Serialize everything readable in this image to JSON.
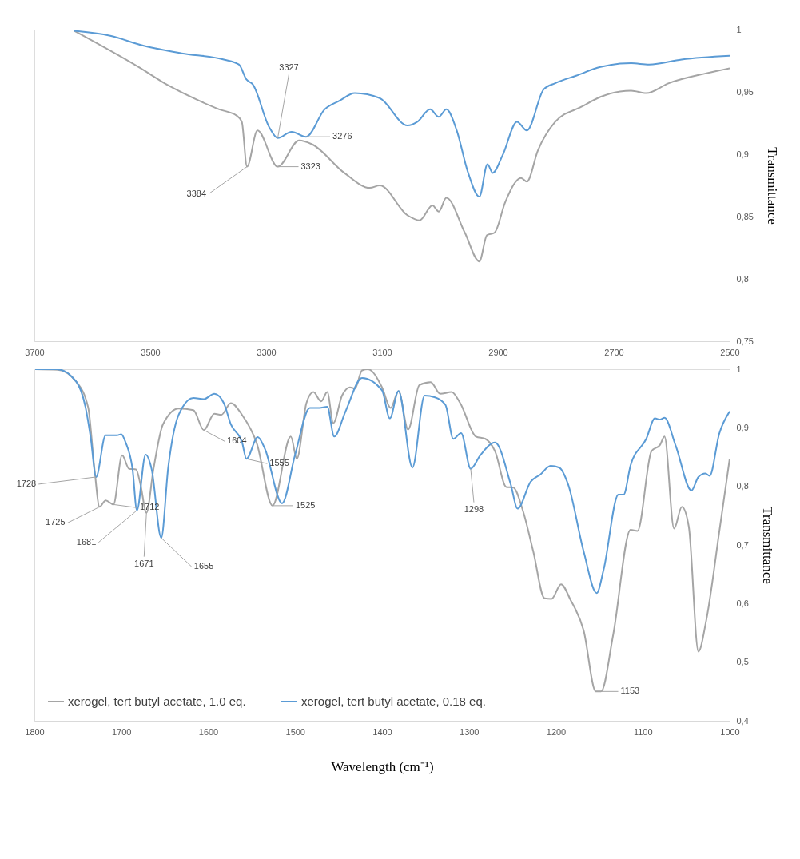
{
  "chart_data": [
    {
      "type": "line",
      "ylabel": "Transmittance",
      "xlim": [
        3700,
        2500
      ],
      "xticks": [
        3700,
        3500,
        3300,
        3100,
        2900,
        2700,
        2500
      ],
      "ylim": [
        0.75,
        1
      ],
      "yticks": [
        {
          "value": 0.75,
          "label": "0,75"
        },
        {
          "value": 0.8,
          "label": "0,8"
        },
        {
          "value": 0.85,
          "label": "0,85"
        },
        {
          "value": 0.9,
          "label": "0,9"
        },
        {
          "value": 0.95,
          "label": "0,95"
        },
        1
      ],
      "series": [
        {
          "color": "#a5a5a5",
          "x": [
            3631,
            3520,
            3468,
            3416,
            3381,
            3351,
            3342,
            3333,
            3315,
            3280,
            3243,
            3221,
            3165,
            3121,
            3104,
            3056,
            3035,
            3013,
            3002,
            2989,
            2957,
            2932,
            2919,
            2906,
            2887,
            2860,
            2850,
            2831,
            2801,
            2756,
            2723,
            2670,
            2644,
            2605,
            2540,
            2500
          ],
          "values": [
            0.999,
            0.97,
            0.955,
            0.943,
            0.936,
            0.931,
            0.926,
            0.89,
            0.919,
            0.89,
            0.911,
            0.908,
            0.885,
            0.873,
            0.875,
            0.851,
            0.847,
            0.859,
            0.854,
            0.865,
            0.837,
            0.814,
            0.835,
            0.837,
            0.862,
            0.881,
            0.878,
            0.903,
            0.926,
            0.938,
            0.946,
            0.951,
            0.949,
            0.957,
            0.965,
            0.969
          ]
        },
        {
          "color": "#5b9bd5",
          "x": [
            3631,
            3569,
            3511,
            3446,
            3373,
            3347,
            3334,
            3323,
            3295,
            3280,
            3256,
            3231,
            3199,
            3173,
            3147,
            3104,
            3056,
            3039,
            3017,
            3002,
            2989,
            2971,
            2952,
            2932,
            2918,
            2909,
            2892,
            2867,
            2850,
            2821,
            2801,
            2765,
            2723,
            2670,
            2639,
            2583,
            2500
          ],
          "values": [
            0.999,
            0.995,
            0.987,
            0.981,
            0.976,
            0.972,
            0.96,
            0.956,
            0.922,
            0.913,
            0.918,
            0.914,
            0.936,
            0.943,
            0.949,
            0.945,
            0.923,
            0.926,
            0.936,
            0.93,
            0.936,
            0.919,
            0.886,
            0.866,
            0.892,
            0.885,
            0.899,
            0.926,
            0.919,
            0.952,
            0.957,
            0.963,
            0.97,
            0.973,
            0.972,
            0.976,
            0.979
          ]
        }
      ],
      "annotations": [
        {
          "text": "3327",
          "x": 3280,
          "y": 0.913
        },
        {
          "text": "3276",
          "x": 3231,
          "y": 0.914
        },
        {
          "text": "3384",
          "x": 3333,
          "y": 0.89
        },
        {
          "text": "3323",
          "x": 3280,
          "y": 0.89
        }
      ]
    },
    {
      "type": "line",
      "xlabel": "Wavelength (cm⁻¹)",
      "ylabel": "Transmittance",
      "legend": "bottom left",
      "xlim": [
        1800,
        1000
      ],
      "xticks": [
        1800,
        1700,
        1600,
        1500,
        1400,
        1300,
        1200,
        1100,
        1000
      ],
      "ylim": [
        0.4,
        1
      ],
      "yticks": [
        {
          "value": 0.4,
          "label": "0,4"
        },
        {
          "value": 0.5,
          "label": "0,5"
        },
        {
          "value": 0.6,
          "label": "0,6"
        },
        {
          "value": 0.7,
          "label": "0,7"
        },
        {
          "value": 0.8,
          "label": "0,8"
        },
        {
          "value": 0.9,
          "label": "0,9"
        },
        1
      ],
      "series": [
        {
          "name": "xerogel, tert butyl acetate, 1.0 eq.",
          "color": "#a5a5a5",
          "x": [
            1799,
            1773,
            1752,
            1738,
            1731,
            1725,
            1718,
            1709,
            1699,
            1691,
            1683,
            1678,
            1671,
            1663,
            1652,
            1634,
            1617,
            1605,
            1593,
            1585,
            1574,
            1561,
            1544,
            1526,
            1505,
            1498,
            1487,
            1479,
            1470,
            1463,
            1456,
            1446,
            1437,
            1431,
            1423,
            1416,
            1400,
            1390,
            1381,
            1370,
            1357,
            1344,
            1333,
            1320,
            1310,
            1292,
            1281,
            1270,
            1257,
            1249,
            1238,
            1226,
            1213,
            1205,
            1194,
            1183,
            1168,
            1154,
            1148,
            1134,
            1114,
            1106,
            1090,
            1080,
            1075,
            1064,
            1055,
            1047,
            1036,
            1027,
            1012,
            1000
          ],
          "values": [
            1.0,
            0.999,
            0.979,
            0.934,
            0.832,
            0.765,
            0.776,
            0.769,
            0.853,
            0.83,
            0.829,
            0.804,
            0.755,
            0.829,
            0.906,
            0.933,
            0.93,
            0.896,
            0.924,
            0.922,
            0.942,
            0.922,
            0.873,
            0.767,
            0.885,
            0.847,
            0.942,
            0.961,
            0.945,
            0.961,
            0.908,
            0.955,
            0.969,
            0.967,
            0.998,
            1.0,
            0.969,
            0.934,
            0.963,
            0.897,
            0.973,
            0.978,
            0.958,
            0.961,
            0.942,
            0.885,
            0.881,
            0.86,
            0.799,
            0.798,
            0.759,
            0.689,
            0.609,
            0.608,
            0.633,
            0.606,
            0.554,
            0.45,
            0.45,
            0.547,
            0.726,
            0.724,
            0.86,
            0.871,
            0.885,
            0.728,
            0.765,
            0.731,
            0.518,
            0.571,
            0.722,
            0.847
          ]
        },
        {
          "name": "xerogel, tert butyl acetate, 0.18 eq.",
          "color": "#5b9bd5",
          "x": [
            1799,
            1774,
            1752,
            1741,
            1735,
            1729,
            1718,
            1705,
            1700,
            1695,
            1687,
            1682,
            1672,
            1665,
            1654,
            1646,
            1634,
            1617,
            1605,
            1593,
            1582,
            1574,
            1561,
            1556,
            1543,
            1535,
            1515,
            1500,
            1483,
            1472,
            1463,
            1455,
            1442,
            1423,
            1400,
            1391,
            1381,
            1365,
            1351,
            1339,
            1327,
            1318,
            1309,
            1298,
            1287,
            1270,
            1252,
            1244,
            1229,
            1218,
            1206,
            1196,
            1186,
            1168,
            1153,
            1145,
            1128,
            1122,
            1114,
            1096,
            1086,
            1080,
            1075,
            1062,
            1044,
            1036,
            1028,
            1023,
            1012,
            1000
          ],
          "values": [
            1.0,
            1.0,
            0.979,
            0.934,
            0.881,
            0.816,
            0.887,
            0.887,
            0.889,
            0.875,
            0.829,
            0.759,
            0.854,
            0.829,
            0.712,
            0.832,
            0.922,
            0.951,
            0.949,
            0.958,
            0.942,
            0.906,
            0.875,
            0.847,
            0.884,
            0.865,
            0.771,
            0.854,
            0.934,
            0.934,
            0.936,
            0.885,
            0.928,
            0.985,
            0.964,
            0.916,
            0.963,
            0.832,
            0.955,
            0.952,
            0.939,
            0.881,
            0.891,
            0.83,
            0.853,
            0.875,
            0.804,
            0.762,
            0.808,
            0.82,
            0.835,
            0.832,
            0.804,
            0.689,
            0.618,
            0.658,
            0.786,
            0.786,
            0.836,
            0.881,
            0.916,
            0.914,
            0.917,
            0.869,
            0.793,
            0.816,
            0.822,
            0.818,
            0.89,
            0.928
          ]
        }
      ],
      "annotations": [
        {
          "text": "1728",
          "x": 1729,
          "y": 0.816
        },
        {
          "text": "1725",
          "x": 1725,
          "y": 0.765
        },
        {
          "text": "1712",
          "x": 1709,
          "y": 0.769
        },
        {
          "text": "1681",
          "x": 1682,
          "y": 0.759
        },
        {
          "text": "1671",
          "x": 1671,
          "y": 0.755
        },
        {
          "text": "1655",
          "x": 1654,
          "y": 0.712
        },
        {
          "text": "1604",
          "x": 1605,
          "y": 0.896
        },
        {
          "text": "1555",
          "x": 1556,
          "y": 0.847
        },
        {
          "text": "1525",
          "x": 1526,
          "y": 0.767
        },
        {
          "text": "1298",
          "x": 1298,
          "y": 0.83
        },
        {
          "text": "1153",
          "x": 1154,
          "y": 0.45
        }
      ]
    }
  ]
}
